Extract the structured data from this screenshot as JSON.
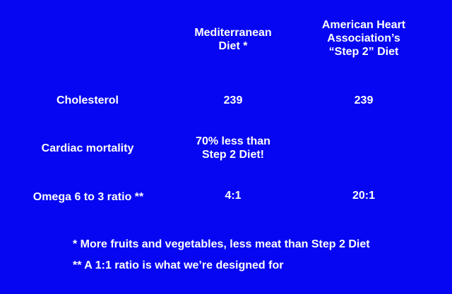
{
  "columns": [
    "Mediterranean\nDiet *",
    "American Heart\nAssociation’s\n“Step 2” Diet"
  ],
  "rows": [
    {
      "label": "Cholesterol",
      "values": [
        "239",
        "239"
      ]
    },
    {
      "label": "Cardiac mortality",
      "values": [
        "70% less than\nStep 2 Diet!",
        ""
      ]
    },
    {
      "label": "Omega 6 to 3 ratio **",
      "values": [
        "4:1",
        "20:1"
      ]
    }
  ],
  "footnotes": [
    "* More fruits and vegetables, less meat than Step 2 Diet",
    "** A 1:1 ratio is what we’re designed for"
  ],
  "colors": {
    "background": "#0606f2",
    "text": "#ffffff"
  }
}
